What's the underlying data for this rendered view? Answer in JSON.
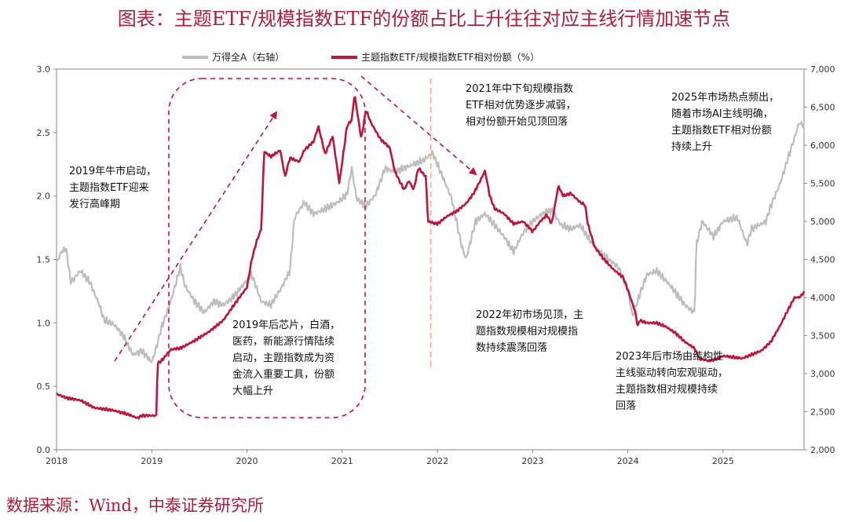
{
  "page_title": "图表：主题ETF/规模指数ETF的份额占比上升往往对应主线行情加速节点",
  "source_note": "数据来源：Wind，中泰证券研究所",
  "chart_data": {
    "type": "line",
    "title": "图表：主题ETF/规模指数ETF的份额占比上升往往对应主线行情加速节点",
    "legend_position": "top",
    "x_ticks": [
      "2018",
      "2019",
      "2020",
      "2021",
      "2022",
      "2023",
      "2024",
      "2025"
    ],
    "x_range": [
      2018.0,
      2025.85
    ],
    "y_left_range": [
      0,
      3.0
    ],
    "y_left_ticks": [
      "0.0",
      "0.5",
      "1.0",
      "1.5",
      "2.0",
      "2.5",
      "3.0"
    ],
    "y_right_range": [
      2000,
      7000
    ],
    "y_right_ticks": [
      "2,000",
      "2,500",
      "3,000",
      "3,500",
      "4,000",
      "4,500",
      "5,000",
      "5,500",
      "6,000",
      "6,500",
      "7,000"
    ],
    "colors": {
      "index": "#bdbdbd",
      "ratio": "#c0143c",
      "annotation": "#c0143c",
      "divider": "#f0a88c"
    },
    "series": [
      {
        "name": "主题指数ETF/规模指数ETF相对份额（%）",
        "axis": "left",
        "points": [
          [
            2018.0,
            0.44
          ],
          [
            2018.1,
            0.41
          ],
          [
            2018.25,
            0.39
          ],
          [
            2018.4,
            0.33
          ],
          [
            2018.6,
            0.31
          ],
          [
            2018.75,
            0.28
          ],
          [
            2018.85,
            0.25
          ],
          [
            2018.9,
            0.27
          ],
          [
            2019.05,
            0.27
          ],
          [
            2019.06,
            0.68
          ],
          [
            2019.1,
            0.7
          ],
          [
            2019.2,
            0.79
          ],
          [
            2019.3,
            0.8
          ],
          [
            2019.45,
            0.86
          ],
          [
            2019.6,
            0.93
          ],
          [
            2019.75,
            1.02
          ],
          [
            2019.9,
            1.18
          ],
          [
            2020.0,
            1.28
          ],
          [
            2020.05,
            1.5
          ],
          [
            2020.1,
            1.64
          ],
          [
            2020.15,
            1.74
          ],
          [
            2020.18,
            2.35
          ],
          [
            2020.25,
            2.31
          ],
          [
            2020.35,
            2.36
          ],
          [
            2020.4,
            2.15
          ],
          [
            2020.45,
            2.3
          ],
          [
            2020.55,
            2.27
          ],
          [
            2020.6,
            2.36
          ],
          [
            2020.7,
            2.43
          ],
          [
            2020.75,
            2.55
          ],
          [
            2020.82,
            2.33
          ],
          [
            2020.9,
            2.47
          ],
          [
            2020.97,
            2.1
          ],
          [
            2021.05,
            2.55
          ],
          [
            2021.1,
            2.6
          ],
          [
            2021.13,
            2.8
          ],
          [
            2021.17,
            2.6
          ],
          [
            2021.2,
            2.45
          ],
          [
            2021.25,
            2.68
          ],
          [
            2021.3,
            2.58
          ],
          [
            2021.4,
            2.45
          ],
          [
            2021.5,
            2.38
          ],
          [
            2021.55,
            2.2
          ],
          [
            2021.6,
            2.12
          ],
          [
            2021.65,
            2.05
          ],
          [
            2021.7,
            2.12
          ],
          [
            2021.75,
            2.05
          ],
          [
            2021.8,
            2.22
          ],
          [
            2021.88,
            2.15
          ],
          [
            2021.9,
            1.8
          ],
          [
            2022.0,
            1.78
          ],
          [
            2022.1,
            1.84
          ],
          [
            2022.2,
            1.88
          ],
          [
            2022.3,
            1.94
          ],
          [
            2022.38,
            2.02
          ],
          [
            2022.45,
            2.12
          ],
          [
            2022.5,
            2.2
          ],
          [
            2022.55,
            2.0
          ],
          [
            2022.6,
            1.9
          ],
          [
            2022.7,
            1.86
          ],
          [
            2022.8,
            1.78
          ],
          [
            2022.9,
            1.8
          ],
          [
            2023.0,
            1.72
          ],
          [
            2023.08,
            1.8
          ],
          [
            2023.15,
            1.85
          ],
          [
            2023.2,
            1.78
          ],
          [
            2023.27,
            2.08
          ],
          [
            2023.32,
            2.0
          ],
          [
            2023.4,
            2.02
          ],
          [
            2023.5,
            1.95
          ],
          [
            2023.55,
            1.93
          ],
          [
            2023.58,
            1.78
          ],
          [
            2023.65,
            1.6
          ],
          [
            2023.75,
            1.5
          ],
          [
            2023.85,
            1.42
          ],
          [
            2023.95,
            1.36
          ],
          [
            2024.0,
            1.26
          ],
          [
            2024.08,
            1.08
          ],
          [
            2024.1,
            0.98
          ],
          [
            2024.11,
            0.98
          ],
          [
            2024.12,
            1.02
          ],
          [
            2024.2,
            1.0
          ],
          [
            2024.3,
            1.0
          ],
          [
            2024.4,
            0.97
          ],
          [
            2024.5,
            0.92
          ],
          [
            2024.6,
            0.85
          ],
          [
            2024.7,
            0.8
          ],
          [
            2024.75,
            0.72
          ],
          [
            2024.85,
            0.7
          ],
          [
            2024.95,
            0.72
          ],
          [
            2025.0,
            0.74
          ],
          [
            2025.2,
            0.72
          ],
          [
            2025.3,
            0.75
          ],
          [
            2025.4,
            0.78
          ],
          [
            2025.5,
            0.85
          ],
          [
            2025.6,
            0.98
          ],
          [
            2025.68,
            1.1
          ],
          [
            2025.75,
            1.2
          ],
          [
            2025.8,
            1.2
          ],
          [
            2025.85,
            1.24
          ]
        ]
      },
      {
        "name": "万得全A（右轴）",
        "axis": "right",
        "points": [
          [
            2018.0,
            4450
          ],
          [
            2018.05,
            4600
          ],
          [
            2018.1,
            4650
          ],
          [
            2018.15,
            4200
          ],
          [
            2018.25,
            4350
          ],
          [
            2018.35,
            4200
          ],
          [
            2018.45,
            3900
          ],
          [
            2018.5,
            3700
          ],
          [
            2018.6,
            3650
          ],
          [
            2018.7,
            3500
          ],
          [
            2018.8,
            3250
          ],
          [
            2018.9,
            3300
          ],
          [
            2019.0,
            3150
          ],
          [
            2019.05,
            3350
          ],
          [
            2019.1,
            3600
          ],
          [
            2019.2,
            3950
          ],
          [
            2019.3,
            4400
          ],
          [
            2019.35,
            4150
          ],
          [
            2019.45,
            3950
          ],
          [
            2019.55,
            3800
          ],
          [
            2019.65,
            3950
          ],
          [
            2019.75,
            3900
          ],
          [
            2019.85,
            4000
          ],
          [
            2019.95,
            4150
          ],
          [
            2020.05,
            4300
          ],
          [
            2020.15,
            3950
          ],
          [
            2020.25,
            3900
          ],
          [
            2020.35,
            4100
          ],
          [
            2020.45,
            4350
          ],
          [
            2020.5,
            5050
          ],
          [
            2020.6,
            5250
          ],
          [
            2020.7,
            5100
          ],
          [
            2020.8,
            5150
          ],
          [
            2020.95,
            5250
          ],
          [
            2021.05,
            5350
          ],
          [
            2021.1,
            5700
          ],
          [
            2021.15,
            5300
          ],
          [
            2021.25,
            5200
          ],
          [
            2021.35,
            5350
          ],
          [
            2021.45,
            5700
          ],
          [
            2021.55,
            5650
          ],
          [
            2021.65,
            5700
          ],
          [
            2021.75,
            5750
          ],
          [
            2021.85,
            5800
          ],
          [
            2021.95,
            5900
          ],
          [
            2022.05,
            5600
          ],
          [
            2022.15,
            5300
          ],
          [
            2022.25,
            4700
          ],
          [
            2022.3,
            4500
          ],
          [
            2022.4,
            5000
          ],
          [
            2022.5,
            5100
          ],
          [
            2022.6,
            4950
          ],
          [
            2022.7,
            4800
          ],
          [
            2022.8,
            4600
          ],
          [
            2022.9,
            4850
          ],
          [
            2023.0,
            5000
          ],
          [
            2023.1,
            5100
          ],
          [
            2023.2,
            5150
          ],
          [
            2023.3,
            4950
          ],
          [
            2023.4,
            4900
          ],
          [
            2023.5,
            4950
          ],
          [
            2023.6,
            4750
          ],
          [
            2023.7,
            4600
          ],
          [
            2023.8,
            4500
          ],
          [
            2023.9,
            4400
          ],
          [
            2024.0,
            4100
          ],
          [
            2024.05,
            3750
          ],
          [
            2024.1,
            3950
          ],
          [
            2024.2,
            4300
          ],
          [
            2024.3,
            4350
          ],
          [
            2024.45,
            4150
          ],
          [
            2024.6,
            3900
          ],
          [
            2024.7,
            3800
          ],
          [
            2024.72,
            4700
          ],
          [
            2024.78,
            5000
          ],
          [
            2024.9,
            4800
          ],
          [
            2025.0,
            5000
          ],
          [
            2025.15,
            5050
          ],
          [
            2025.25,
            4700
          ],
          [
            2025.3,
            4900
          ],
          [
            2025.45,
            5000
          ],
          [
            2025.5,
            5200
          ],
          [
            2025.6,
            5500
          ],
          [
            2025.7,
            5900
          ],
          [
            2025.75,
            6100
          ],
          [
            2025.8,
            6300
          ],
          [
            2025.85,
            6250
          ]
        ]
      }
    ],
    "legend": [
      {
        "label": "万得全A（右轴）",
        "color": "#bdbdbd"
      },
      {
        "label": "主题指数ETF/规模指数ETF相对份额（%）",
        "color": "#c0143c"
      }
    ],
    "annotations": [
      [
        "2019年牛市启动，",
        "主题指数ETF迎来",
        "发行高峰期"
      ],
      [
        "2019年后芯片，白酒，",
        "医药，新能源行情陆续",
        "启动，主题指数成为资",
        "金流入重要工具，份额",
        "大幅上升"
      ],
      [
        "2021年中下旬规模指数",
        "ETF相对优势逐步减弱，",
        "相对份额开始见顶回落"
      ],
      [
        "2022年初市场见顶，主",
        "题指数规模相对规模指",
        "数持续震荡回落"
      ],
      [
        "2023年后市场由结构性",
        "主线驱动转向宏观驱动，",
        "主题指数相对规模持续",
        "回落"
      ],
      [
        "2025年市场热点频出，",
        "随着市场AI主线明确，",
        "主题指数ETF相对份额",
        "持续上升"
      ]
    ]
  }
}
